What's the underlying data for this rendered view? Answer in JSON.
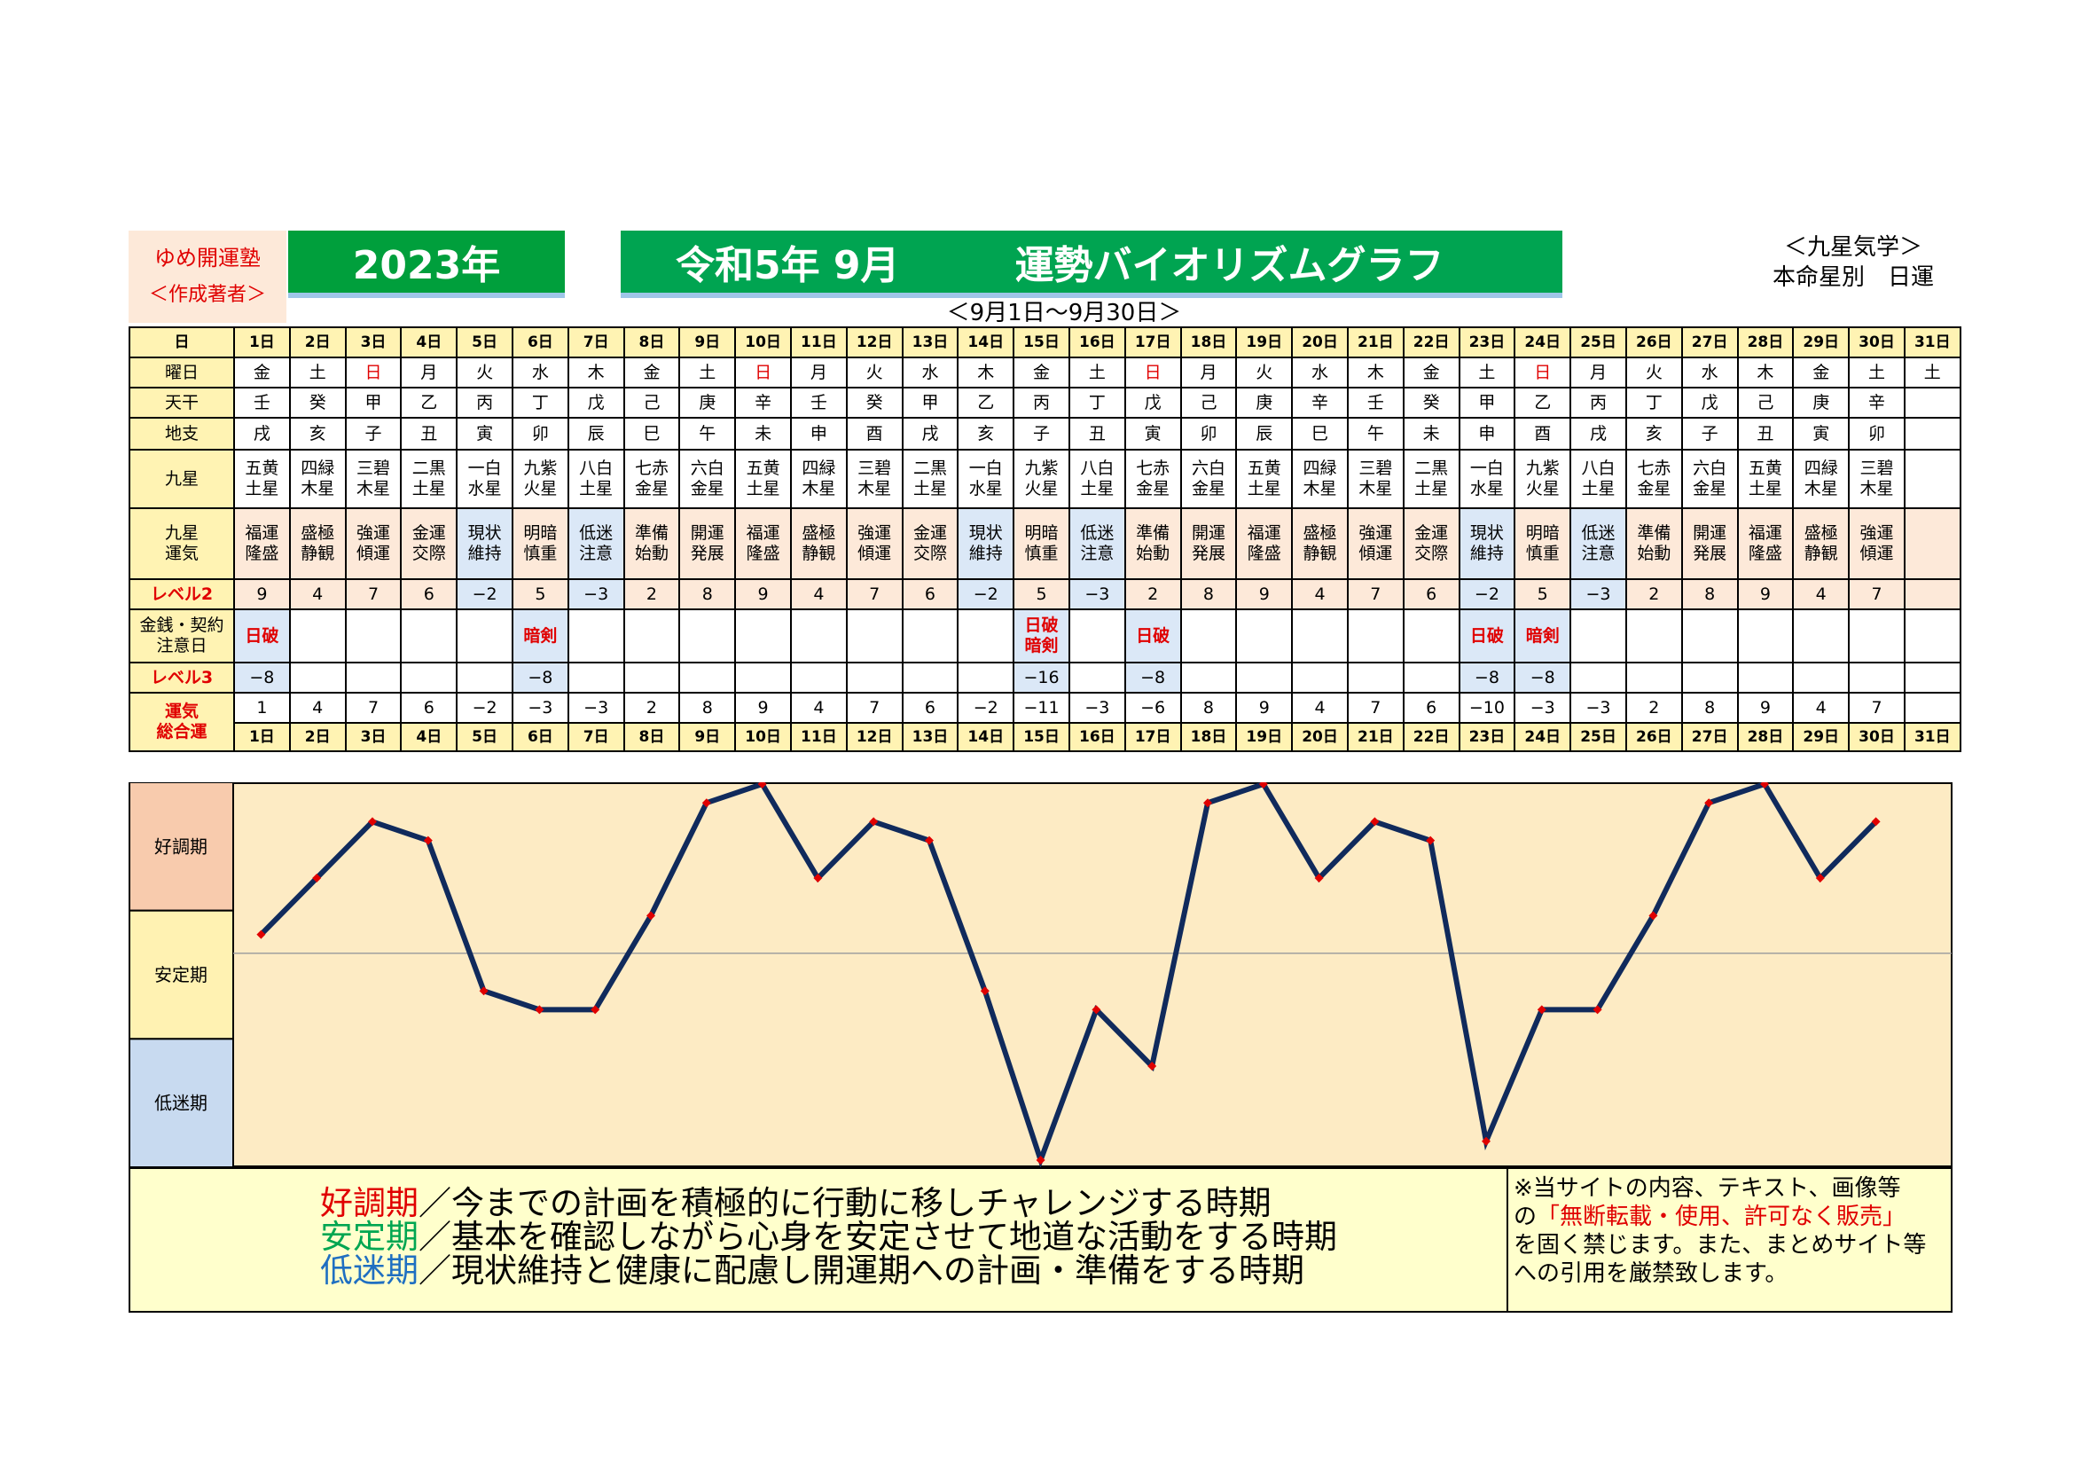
{
  "header": {
    "brand_line1": "ゆめ開運塾",
    "brand_line2": "＜作成著者＞",
    "year": "2023年",
    "title_left": "令和5年 9月",
    "title_right": "運勢バイオリズムグラフ",
    "note_line1": "＜九星気学＞",
    "note_line2": "本命星別　日運",
    "range": "＜9月1日～9月30日＞"
  },
  "row_labels": {
    "day": "日",
    "weekday": "曜日",
    "tenkan": "天干",
    "chishi": "地支",
    "kyusei": "九星",
    "kyusei_unki_1": "九星",
    "kyusei_unki_2": "運気",
    "level2": "レベル2",
    "caution_1": "金銭・契約",
    "caution_2": "注意日",
    "level3": "レベル3",
    "total_1": "運気",
    "total_2": "総合運"
  },
  "days": [
    "1日",
    "2日",
    "3日",
    "4日",
    "5日",
    "6日",
    "7日",
    "8日",
    "9日",
    "10日",
    "11日",
    "12日",
    "13日",
    "14日",
    "15日",
    "16日",
    "17日",
    "18日",
    "19日",
    "20日",
    "21日",
    "22日",
    "23日",
    "24日",
    "25日",
    "26日",
    "27日",
    "28日",
    "29日",
    "30日",
    "31日"
  ],
  "weekdays": [
    "金",
    "土",
    "日",
    "月",
    "火",
    "水",
    "木",
    "金",
    "土",
    "日",
    "月",
    "火",
    "水",
    "木",
    "金",
    "土",
    "日",
    "月",
    "火",
    "水",
    "木",
    "金",
    "土",
    "日",
    "月",
    "火",
    "水",
    "木",
    "金",
    "土",
    "土"
  ],
  "weekday_red": [
    false,
    false,
    true,
    false,
    false,
    false,
    false,
    false,
    false,
    true,
    false,
    false,
    false,
    false,
    false,
    false,
    true,
    false,
    false,
    false,
    false,
    false,
    false,
    true,
    false,
    false,
    false,
    false,
    false,
    false,
    false
  ],
  "tenkan": [
    "壬",
    "癸",
    "甲",
    "乙",
    "丙",
    "丁",
    "戊",
    "己",
    "庚",
    "辛",
    "壬",
    "癸",
    "甲",
    "乙",
    "丙",
    "丁",
    "戊",
    "己",
    "庚",
    "辛",
    "壬",
    "癸",
    "甲",
    "乙",
    "丙",
    "丁",
    "戊",
    "己",
    "庚",
    "辛",
    ""
  ],
  "chishi": [
    "戌",
    "亥",
    "子",
    "丑",
    "寅",
    "卯",
    "辰",
    "巳",
    "午",
    "未",
    "申",
    "酉",
    "戌",
    "亥",
    "子",
    "丑",
    "寅",
    "卯",
    "辰",
    "巳",
    "午",
    "未",
    "申",
    "酉",
    "戌",
    "亥",
    "子",
    "丑",
    "寅",
    "卯",
    ""
  ],
  "kyusei_top": [
    "五黄",
    "四緑",
    "三碧",
    "二黒",
    "一白",
    "九紫",
    "八白",
    "七赤",
    "六白",
    "五黄",
    "四緑",
    "三碧",
    "二黒",
    "一白",
    "九紫",
    "八白",
    "七赤",
    "六白",
    "五黄",
    "四緑",
    "三碧",
    "二黒",
    "一白",
    "九紫",
    "八白",
    "七赤",
    "六白",
    "五黄",
    "四緑",
    "三碧",
    ""
  ],
  "kyusei_bottom": [
    "土星",
    "木星",
    "木星",
    "土星",
    "水星",
    "火星",
    "土星",
    "金星",
    "金星",
    "土星",
    "木星",
    "木星",
    "土星",
    "水星",
    "火星",
    "土星",
    "金星",
    "金星",
    "土星",
    "木星",
    "木星",
    "土星",
    "水星",
    "火星",
    "土星",
    "金星",
    "金星",
    "土星",
    "木星",
    "木星",
    ""
  ],
  "unki_top": [
    "福運",
    "盛極",
    "強運",
    "金運",
    "現状",
    "明暗",
    "低迷",
    "準備",
    "開運",
    "福運",
    "盛極",
    "強運",
    "金運",
    "現状",
    "明暗",
    "低迷",
    "準備",
    "開運",
    "福運",
    "盛極",
    "強運",
    "金運",
    "現状",
    "明暗",
    "低迷",
    "準備",
    "開運",
    "福運",
    "盛極",
    "強運",
    ""
  ],
  "unki_bottom": [
    "隆盛",
    "静観",
    "傾運",
    "交際",
    "維持",
    "慎重",
    "注意",
    "始動",
    "発展",
    "隆盛",
    "静観",
    "傾運",
    "交際",
    "維持",
    "慎重",
    "注意",
    "始動",
    "発展",
    "隆盛",
    "静観",
    "傾運",
    "交際",
    "維持",
    "慎重",
    "注意",
    "始動",
    "発展",
    "隆盛",
    "静観",
    "傾運",
    ""
  ],
  "level2": [
    "9",
    "4",
    "7",
    "6",
    "−2",
    "5",
    "−3",
    "2",
    "8",
    "9",
    "4",
    "7",
    "6",
    "−2",
    "5",
    "−3",
    "2",
    "8",
    "9",
    "4",
    "7",
    "6",
    "−2",
    "5",
    "−3",
    "2",
    "8",
    "9",
    "4",
    "7",
    ""
  ],
  "caution_top": [
    "日破",
    "",
    "",
    "",
    "",
    "暗剣",
    "",
    "",
    "",
    "",
    "",
    "",
    "",
    "",
    "日破",
    "",
    "日破",
    "",
    "",
    "",
    "",
    "",
    "日破",
    "暗剣",
    "",
    "",
    "",
    "",
    "",
    "",
    ""
  ],
  "caution_bottom": [
    "",
    "",
    "",
    "",
    "",
    "",
    "",
    "",
    "",
    "",
    "",
    "",
    "",
    "",
    "暗剣",
    "",
    "",
    "",
    "",
    "",
    "",
    "",
    "",
    "",
    "",
    "",
    "",
    "",
    "",
    "",
    ""
  ],
  "level3": [
    "−8",
    "",
    "",
    "",
    "",
    "−8",
    "",
    "",
    "",
    "",
    "",
    "",
    "",
    "",
    "−16",
    "",
    "−8",
    "",
    "",
    "",
    "",
    "",
    "−8",
    "−8",
    "",
    "",
    "",
    "",
    "",
    "",
    ""
  ],
  "total": [
    "1",
    "4",
    "7",
    "6",
    "−2",
    "−3",
    "−3",
    "2",
    "8",
    "9",
    "4",
    "7",
    "6",
    "−2",
    "−11",
    "−3",
    "−6",
    "8",
    "9",
    "4",
    "7",
    "6",
    "−10",
    "−3",
    "−3",
    "2",
    "8",
    "9",
    "4",
    "7",
    ""
  ],
  "chart_data": {
    "type": "line",
    "x": [
      "1日",
      "2日",
      "3日",
      "4日",
      "5日",
      "6日",
      "7日",
      "8日",
      "9日",
      "10日",
      "11日",
      "12日",
      "13日",
      "14日",
      "15日",
      "16日",
      "17日",
      "18日",
      "19日",
      "20日",
      "21日",
      "22日",
      "23日",
      "24日",
      "25日",
      "26日",
      "27日",
      "28日",
      "29日",
      "30日"
    ],
    "series": [
      {
        "values": [
          1,
          4,
          7,
          6,
          -2,
          -3,
          -3,
          2,
          8,
          9,
          4,
          7,
          6,
          -2,
          -11,
          -3,
          -6,
          8,
          9,
          4,
          7,
          6,
          -10,
          -3,
          -3,
          2,
          8,
          9,
          4,
          7
        ]
      }
    ],
    "zones": [
      "好調期",
      "安定期",
      "低迷期"
    ],
    "ylim": [
      -11,
      9
    ],
    "line_color": "#102a5c",
    "marker_color": "#e00000",
    "grid": false
  },
  "legend": {
    "k1": "好調期",
    "t1": "／今までの計画を積極的に行動に移しチャレンジする時期",
    "k2": "安定期",
    "t2": "／基本を確認しながら心身を安定させて地道な活動をする時期",
    "k3": "低迷期",
    "t3": "／現状維持と健康に配慮し開運期への計画・準備をする時期"
  },
  "notice": {
    "l1": "※当サイトの内容、テキスト、画像等",
    "l2a": "の",
    "l2b": "「無断転載・使用、許可なく販売」",
    "l3": "を固く禁じます。また、まとめサイト等",
    "l4": "への引用を厳禁致します。"
  }
}
